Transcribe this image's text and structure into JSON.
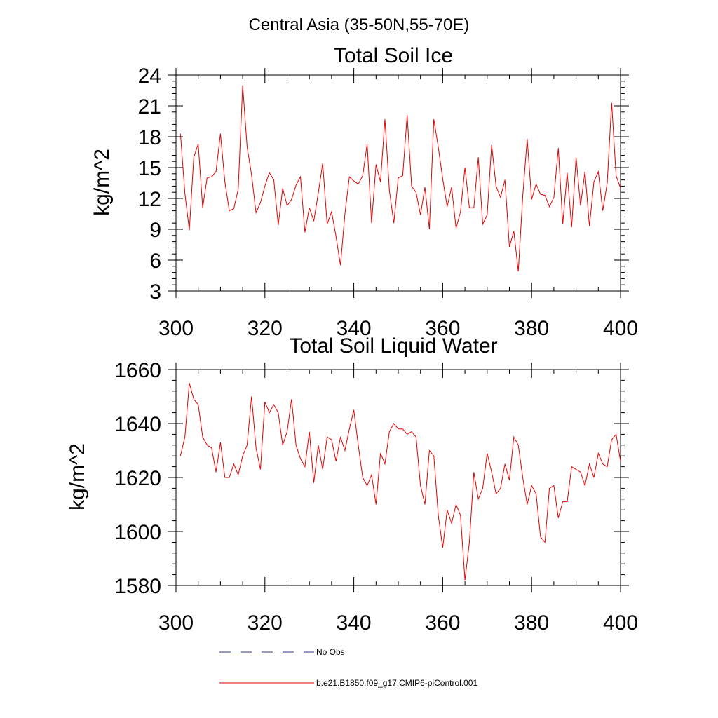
{
  "figure": {
    "suptitle": "Central Asia (35-50N,55-70E)"
  },
  "legend": {
    "placement": "bottom-left",
    "entries": [
      {
        "label": "No Obs",
        "color": "#2e3a87",
        "style": "dashed"
      },
      {
        "label": "b.e21.B1850.f09_g17.CMIP6-piControl.001",
        "color": "#e60000",
        "style": "solid"
      }
    ]
  },
  "chart_data": [
    {
      "type": "line",
      "title": "Total Soil Ice",
      "xlabel": "",
      "ylabel": "kg/m^2",
      "xlim": [
        300,
        400
      ],
      "ylim": [
        3,
        24
      ],
      "xticks": [
        300,
        320,
        340,
        360,
        380,
        400
      ],
      "yticks": [
        3,
        6,
        9,
        12,
        15,
        18,
        21,
        24
      ],
      "x_start": 301,
      "x_step": 1,
      "series": [
        {
          "name": "b.e21.B1850.f09_g17.CMIP6-piControl.001",
          "color": "#e60000",
          "values": [
            18.3,
            12.5,
            8.9,
            16.0,
            17.3,
            11.1,
            14.0,
            14.1,
            14.6,
            18.3,
            13.6,
            10.8,
            11.0,
            12.9,
            23.0,
            17.0,
            14.3,
            10.6,
            11.6,
            13.2,
            14.5,
            13.8,
            9.4,
            13.0,
            11.3,
            11.9,
            13.3,
            14.1,
            8.7,
            11.1,
            9.8,
            12.5,
            15.4,
            9.5,
            10.7,
            8.3,
            5.5,
            10.5,
            14.1,
            13.7,
            13.4,
            14.2,
            17.3,
            9.6,
            15.3,
            13.6,
            19.7,
            12.8,
            9.6,
            14.0,
            14.2,
            20.1,
            13.2,
            12.6,
            10.4,
            13.1,
            9.0,
            19.7,
            17.0,
            13.9,
            11.2,
            13.1,
            9.1,
            10.7,
            15.0,
            11.1,
            11.1,
            16.0,
            9.5,
            10.4,
            17.2,
            13.2,
            12.1,
            13.8,
            7.3,
            8.8,
            4.9,
            12.2,
            17.8,
            11.9,
            13.4,
            12.4,
            12.3,
            11.2,
            12.1,
            16.9,
            9.5,
            14.5,
            9.2,
            16.0,
            11.3,
            14.6,
            9.3,
            13.6,
            14.6,
            10.8,
            13.5,
            21.3,
            14.2,
            13.0
          ]
        }
      ]
    },
    {
      "type": "line",
      "title": "Total Soil Liquid Water",
      "xlabel": "",
      "ylabel": "kg/m^2",
      "xlim": [
        300,
        400
      ],
      "ylim": [
        1580,
        1660
      ],
      "xticks": [
        300,
        320,
        340,
        360,
        380,
        400
      ],
      "yticks": [
        1580,
        1600,
        1620,
        1640,
        1660
      ],
      "x_start": 301,
      "x_step": 1,
      "series": [
        {
          "name": "b.e21.B1850.f09_g17.CMIP6-piControl.001",
          "color": "#e60000",
          "values": [
            1628,
            1635,
            1655,
            1649,
            1647,
            1635,
            1632,
            1631,
            1622,
            1633,
            1620,
            1620,
            1625,
            1621,
            1628,
            1632,
            1650,
            1631,
            1623,
            1648,
            1644,
            1647,
            1644,
            1632,
            1637,
            1649,
            1632,
            1627,
            1624,
            1637,
            1618,
            1632,
            1623,
            1635,
            1634,
            1626,
            1635,
            1630,
            1638,
            1645,
            1632,
            1620,
            1617,
            1621,
            1610,
            1629,
            1625,
            1637,
            1640,
            1638,
            1638,
            1636,
            1637,
            1635,
            1617,
            1610,
            1630,
            1628,
            1606,
            1594,
            1608,
            1603,
            1610,
            1606,
            1582,
            1596,
            1622,
            1612,
            1616,
            1629,
            1622,
            1614,
            1616,
            1625,
            1619,
            1635,
            1632,
            1620,
            1610,
            1617,
            1614,
            1598,
            1596,
            1616,
            1617,
            1605,
            1611,
            1611,
            1624,
            1623,
            1622,
            1617,
            1625,
            1620,
            1629,
            1625,
            1624,
            1634,
            1636,
            1626
          ]
        }
      ]
    }
  ]
}
